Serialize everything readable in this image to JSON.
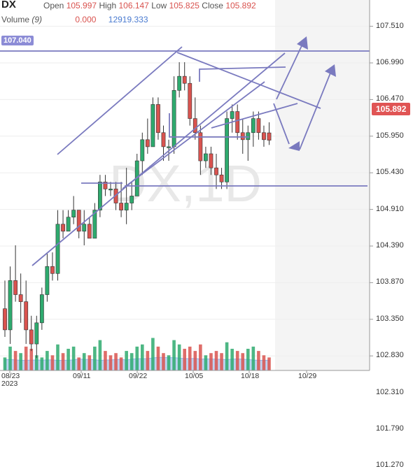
{
  "header": {
    "symbol": "DX",
    "open_label": "Open",
    "open_value": "105.997",
    "high_label": "High",
    "high_value": "106.147",
    "low_label": "Low",
    "low_value": "105.825",
    "close_label": "Close",
    "close_value": "105.892",
    "volume_label": "Volume",
    "volume_period": "(9)",
    "volume_value": "0.000",
    "volume_ma_value": "12919.333"
  },
  "watermark": "DX,1D",
  "badges": {
    "level_label": "107.040",
    "last_price": "105.892"
  },
  "colors": {
    "up": "#2eaa6e",
    "down": "#d9534f",
    "lines": "#7a7abf",
    "volume_area": "#a9c6ef"
  },
  "chart_data": {
    "type": "candlestick",
    "symbol": "DX",
    "interval": "1D",
    "ylim": [
      100.9,
      107.9
    ],
    "y_ticks": [
      "107.510",
      "106.990",
      "106.470",
      "105.950",
      "105.430",
      "104.910",
      "104.390",
      "103.870",
      "103.350",
      "102.830",
      "102.310",
      "101.790",
      "101.270"
    ],
    "x_ticks": [
      "08/23",
      "09/11",
      "09/22",
      "10/05",
      "10/18",
      "10/29"
    ],
    "x_tick_year": "2023",
    "candles": [
      [
        103.5,
        103.9,
        103.1,
        103.2
      ],
      [
        103.2,
        104.1,
        103.0,
        103.9
      ],
      [
        103.9,
        104.4,
        103.6,
        103.7
      ],
      [
        103.7,
        104.0,
        103.3,
        103.6
      ],
      [
        103.6,
        103.9,
        103.0,
        103.2
      ],
      [
        103.2,
        103.4,
        102.9,
        103.0
      ],
      [
        103.0,
        103.4,
        102.8,
        103.3
      ],
      [
        103.3,
        103.8,
        103.2,
        103.7
      ],
      [
        103.7,
        104.3,
        103.6,
        104.1
      ],
      [
        104.1,
        104.3,
        103.9,
        104.0
      ],
      [
        104.0,
        104.9,
        103.9,
        104.7
      ],
      [
        104.7,
        104.9,
        104.5,
        104.6
      ],
      [
        104.6,
        104.9,
        104.6,
        104.8
      ],
      [
        104.8,
        105.1,
        104.7,
        104.9
      ],
      [
        104.9,
        104.9,
        104.5,
        104.6
      ],
      [
        104.6,
        104.9,
        104.4,
        104.7
      ],
      [
        104.7,
        104.8,
        104.5,
        104.5
      ],
      [
        104.5,
        105.0,
        104.5,
        104.9
      ],
      [
        104.9,
        105.4,
        104.8,
        105.3
      ],
      [
        105.3,
        105.4,
        105.1,
        105.2
      ],
      [
        105.2,
        105.3,
        105.1,
        105.2
      ],
      [
        105.2,
        105.3,
        104.9,
        105.0
      ],
      [
        105.0,
        105.3,
        104.8,
        104.9
      ],
      [
        104.9,
        105.5,
        104.7,
        105.0
      ],
      [
        105.0,
        105.3,
        104.9,
        105.1
      ],
      [
        105.1,
        105.7,
        105.1,
        105.6
      ],
      [
        105.6,
        106.0,
        105.4,
        105.9
      ],
      [
        105.9,
        106.2,
        105.7,
        105.8
      ],
      [
        105.8,
        106.5,
        105.8,
        106.4
      ],
      [
        106.4,
        106.5,
        105.9,
        106.0
      ],
      [
        106.0,
        106.1,
        105.6,
        105.8
      ],
      [
        105.8,
        105.9,
        105.6,
        105.8
      ],
      [
        105.8,
        106.8,
        105.7,
        106.6
      ],
      [
        106.6,
        107.0,
        106.5,
        106.8
      ],
      [
        106.8,
        107.0,
        106.6,
        106.7
      ],
      [
        106.7,
        106.8,
        106.1,
        106.2
      ],
      [
        106.2,
        106.5,
        105.9,
        106.0
      ],
      [
        106.0,
        106.1,
        105.4,
        105.6
      ],
      [
        105.6,
        105.8,
        105.5,
        105.7
      ],
      [
        105.7,
        105.8,
        105.4,
        105.5
      ],
      [
        105.5,
        105.7,
        105.2,
        105.4
      ],
      [
        105.4,
        105.5,
        105.2,
        105.3
      ],
      [
        105.3,
        106.3,
        105.2,
        106.2
      ],
      [
        106.2,
        106.4,
        106.0,
        106.3
      ],
      [
        106.3,
        106.4,
        105.9,
        106.0
      ],
      [
        106.0,
        106.2,
        105.7,
        105.9
      ],
      [
        105.9,
        106.1,
        105.6,
        106.0
      ],
      [
        106.0,
        106.3,
        105.8,
        106.2
      ],
      [
        106.2,
        106.3,
        105.9,
        106.0
      ],
      [
        106.0,
        106.1,
        105.8,
        105.9
      ],
      [
        105.997,
        106.147,
        105.825,
        105.892
      ]
    ],
    "volume": [
      [
        0.3,
        "up"
      ],
      [
        0.55,
        "up"
      ],
      [
        0.45,
        "down"
      ],
      [
        0.4,
        "up"
      ],
      [
        0.55,
        "down"
      ],
      [
        0.5,
        "down"
      ],
      [
        0.35,
        "up"
      ],
      [
        0.3,
        "up"
      ],
      [
        0.45,
        "up"
      ],
      [
        0.35,
        "down"
      ],
      [
        0.6,
        "up"
      ],
      [
        0.4,
        "down"
      ],
      [
        0.5,
        "up"
      ],
      [
        0.55,
        "up"
      ],
      [
        0.3,
        "down"
      ],
      [
        0.4,
        "up"
      ],
      [
        0.35,
        "down"
      ],
      [
        0.55,
        "up"
      ],
      [
        0.7,
        "up"
      ],
      [
        0.45,
        "down"
      ],
      [
        0.35,
        "down"
      ],
      [
        0.4,
        "down"
      ],
      [
        0.3,
        "down"
      ],
      [
        0.45,
        "up"
      ],
      [
        0.4,
        "up"
      ],
      [
        0.55,
        "up"
      ],
      [
        0.6,
        "up"
      ],
      [
        0.45,
        "down"
      ],
      [
        0.75,
        "up"
      ],
      [
        0.55,
        "down"
      ],
      [
        0.4,
        "down"
      ],
      [
        0.35,
        "up"
      ],
      [
        0.7,
        "up"
      ],
      [
        0.6,
        "up"
      ],
      [
        0.5,
        "down"
      ],
      [
        0.55,
        "down"
      ],
      [
        0.45,
        "down"
      ],
      [
        0.6,
        "down"
      ],
      [
        0.35,
        "up"
      ],
      [
        0.4,
        "down"
      ],
      [
        0.45,
        "down"
      ],
      [
        0.4,
        "down"
      ],
      [
        0.65,
        "up"
      ],
      [
        0.5,
        "up"
      ],
      [
        0.45,
        "down"
      ],
      [
        0.4,
        "down"
      ],
      [
        0.5,
        "up"
      ],
      [
        0.55,
        "up"
      ],
      [
        0.45,
        "down"
      ],
      [
        0.35,
        "down"
      ],
      [
        0.3,
        "down"
      ]
    ],
    "horizontal_levels": [
      107.04,
      104.35
    ],
    "annotations_drawn": "trend channel lines, triangle pattern and projection arrows"
  }
}
